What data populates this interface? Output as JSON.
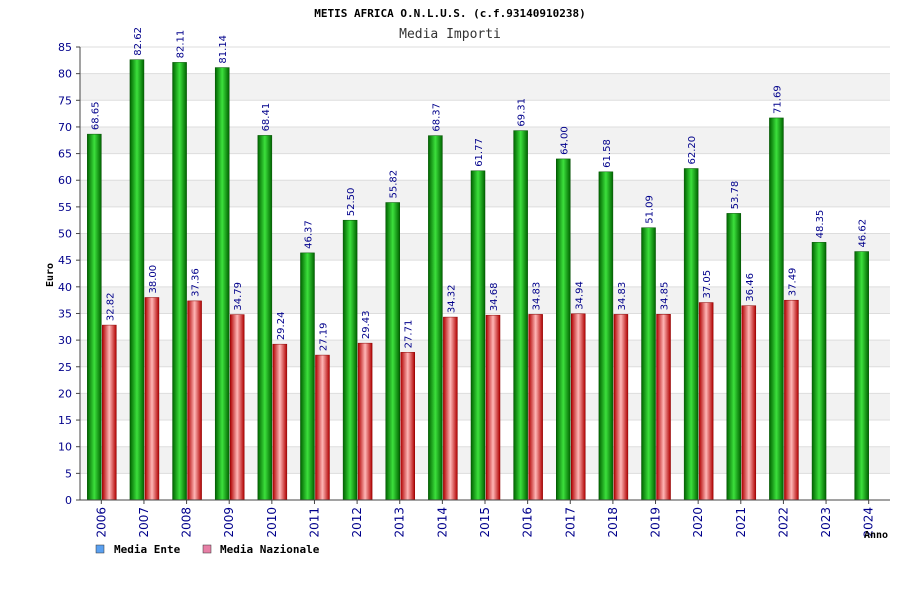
{
  "chart_data": {
    "type": "bar",
    "title": "METIS AFRICA O.N.L.U.S. (c.f.93140910238)",
    "subtitle": "Media Importi",
    "xlabel": "Anno",
    "ylabel": "Euro",
    "ylim": [
      0,
      85
    ],
    "ytick_step": 5,
    "grid": true,
    "legend_position": "bottom-left",
    "categories": [
      "2006",
      "2007",
      "2008",
      "2009",
      "2010",
      "2011",
      "2012",
      "2013",
      "2014",
      "2015",
      "2016",
      "2017",
      "2018",
      "2019",
      "2020",
      "2021",
      "2022",
      "2023",
      "2024"
    ],
    "series": [
      {
        "name": "Media Ente",
        "color": "#00b400",
        "values": [
          68.65,
          82.62,
          82.11,
          81.14,
          68.41,
          46.37,
          52.5,
          55.82,
          68.37,
          61.77,
          69.31,
          64.0,
          61.58,
          51.09,
          62.2,
          53.78,
          71.69,
          48.35,
          46.62
        ],
        "labels": [
          "68.65",
          "82.62",
          "82.11",
          "81.14",
          "68.41",
          "46.37",
          "52.50",
          "55.82",
          "68.37",
          "61.77",
          "69.31",
          "64.00",
          "61.58",
          "51.09",
          "62.20",
          "53.78",
          "71.69",
          "48.35",
          "46.62"
        ]
      },
      {
        "name": "Media Nazionale",
        "color": "#dd3b3b",
        "values": [
          32.82,
          38.0,
          37.36,
          34.79,
          29.24,
          27.19,
          29.43,
          27.71,
          34.32,
          34.68,
          34.83,
          34.94,
          34.83,
          34.85,
          37.05,
          36.46,
          37.49,
          null,
          null
        ],
        "labels": [
          "32.82",
          "38.00",
          "37.36",
          "34.79",
          "29.24",
          "27.19",
          "29.43",
          "27.71",
          "34.32",
          "34.68",
          "34.83",
          "34.94",
          "34.83",
          "34.85",
          "37.05",
          "36.46",
          "37.49",
          "",
          ""
        ]
      }
    ],
    "legend": [
      {
        "name": "Media Ente",
        "swatch": "#5aa0f0"
      },
      {
        "name": "Media Nazionale",
        "swatch": "#e77fa6"
      }
    ]
  }
}
